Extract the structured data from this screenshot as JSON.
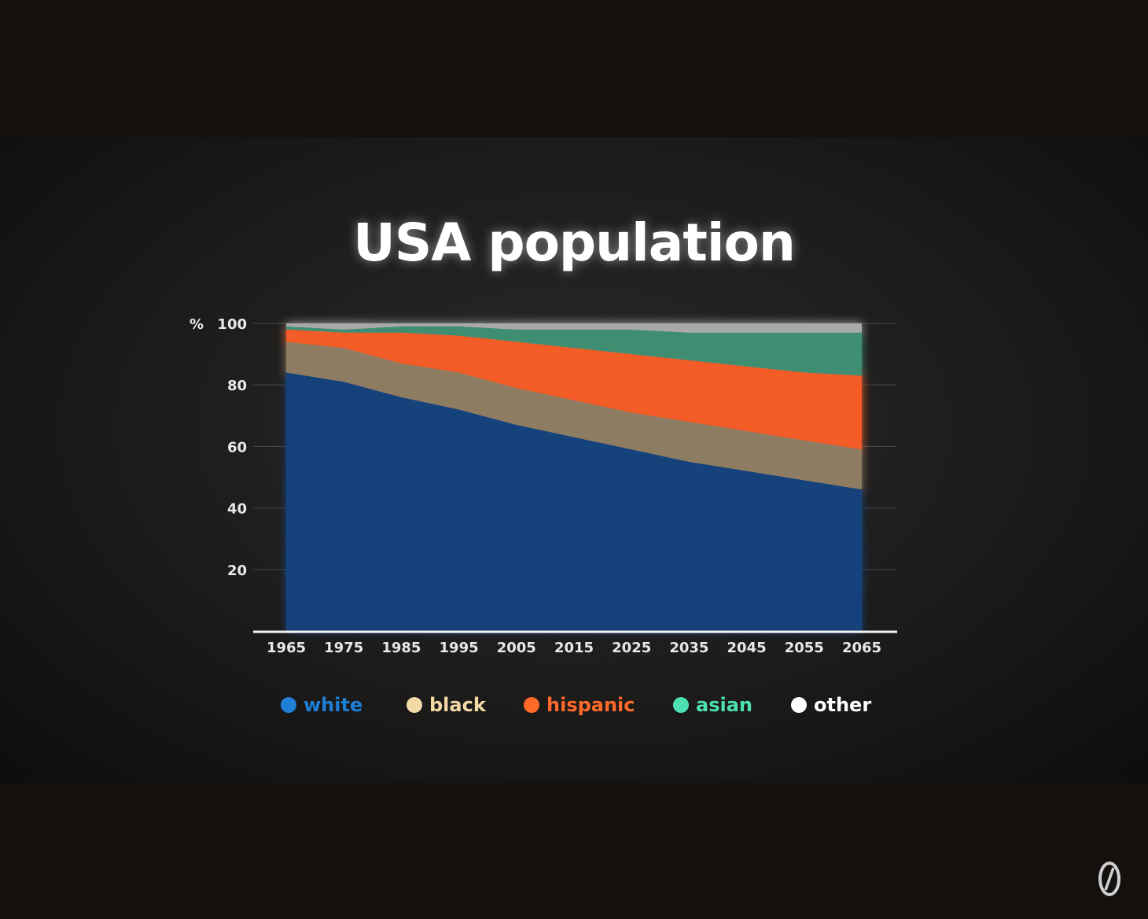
{
  "chart_data": {
    "type": "area",
    "stacked": true,
    "title": "USA population",
    "ylabel": "%",
    "ylim": [
      0,
      100
    ],
    "yticks": [
      20,
      40,
      60,
      80,
      100
    ],
    "x": [
      1965,
      1975,
      1985,
      1995,
      2005,
      2015,
      2025,
      2035,
      2045,
      2055,
      2065
    ],
    "series": [
      {
        "name": "white",
        "color": "#17427c",
        "legend_color": "#1f7fd6",
        "values": [
          84,
          81,
          76,
          72,
          67,
          63,
          59,
          55,
          52,
          49,
          46
        ]
      },
      {
        "name": "black",
        "color": "#8e7c62",
        "legend_color": "#f3d9a6",
        "values": [
          10,
          11,
          11,
          12,
          12,
          12,
          12,
          13,
          13,
          13,
          13
        ]
      },
      {
        "name": "hispanic",
        "color": "#f35b27",
        "legend_color": "#ff6a2a",
        "values": [
          4,
          5,
          10,
          12,
          15,
          17,
          19,
          20,
          21,
          22,
          24
        ]
      },
      {
        "name": "asian",
        "color": "#3f8e72",
        "legend_color": "#4ce0b3",
        "values": [
          1,
          1,
          2,
          3,
          4,
          6,
          8,
          9,
          11,
          13,
          14
        ]
      },
      {
        "name": "other",
        "color": "#a9a9a9",
        "legend_color": "#ffffff",
        "values": [
          1,
          2,
          1,
          1,
          2,
          2,
          2,
          3,
          3,
          3,
          3
        ]
      }
    ],
    "legend_position": "bottom",
    "grid": true
  }
}
